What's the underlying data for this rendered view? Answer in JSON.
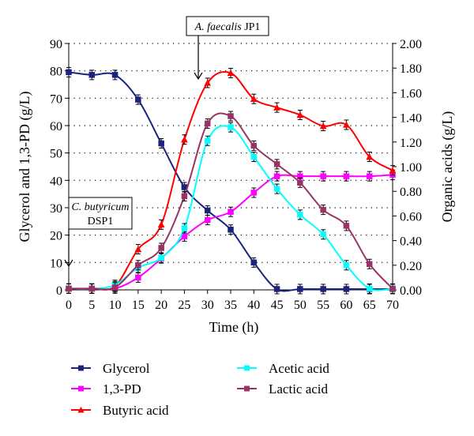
{
  "chart_data": {
    "type": "line",
    "xlabel": "Time (h)",
    "ylabel_left": "Glycerol and 1,3-PD (g/L)",
    "ylabel_right": "Organic acids (g/L)",
    "x": [
      0,
      5,
      10,
      15,
      20,
      25,
      30,
      35,
      40,
      45,
      50,
      55,
      60,
      65,
      70
    ],
    "xlim": [
      0,
      70
    ],
    "ylim_left": [
      0,
      90
    ],
    "ylim_right": [
      0,
      2.0
    ],
    "x_ticks": [
      "0",
      "5",
      "10",
      "15",
      "20",
      "25",
      "30",
      "35",
      "40",
      "45",
      "50",
      "55",
      "60",
      "65",
      "70"
    ],
    "y_left_ticks": [
      "0",
      "10",
      "20",
      "30",
      "40",
      "50",
      "60",
      "70",
      "80",
      "90"
    ],
    "y_right_ticks": [
      "0.00",
      "0.20",
      "0.40",
      "0.60",
      "0.80",
      "1.00",
      "1.20",
      "1.40",
      "1.60",
      "1.80",
      "2.00"
    ],
    "grid": "dotted horizontal",
    "legend_position": "bottom",
    "series": [
      {
        "name": "Glycerol",
        "axis": "left",
        "color": "#1a237e",
        "marker": "square",
        "x": [
          0,
          5,
          10,
          15,
          20,
          25,
          30,
          35,
          40,
          45,
          50,
          55,
          60,
          65,
          70
        ],
        "values": [
          79.5,
          78.5,
          78.5,
          69.5,
          53.5,
          37.5,
          29,
          22,
          10,
          0.3,
          0.3,
          0.3,
          0.3,
          0.3,
          0.3
        ]
      },
      {
        "name": "1,3-PD",
        "axis": "left",
        "color": "#ff00ff",
        "marker": "square",
        "x": [
          0,
          5,
          10,
          15,
          20,
          25,
          30,
          35,
          40,
          45,
          50,
          55,
          60,
          65,
          70
        ],
        "values": [
          0.5,
          0.5,
          0.5,
          4.5,
          11.5,
          19.5,
          25.5,
          28.5,
          35.5,
          41.5,
          41.5,
          41.5,
          41.5,
          41.5,
          42
        ]
      },
      {
        "name": "Butyric acid",
        "axis": "right",
        "color": "#ff0000",
        "marker": "triangle",
        "x": [
          0,
          5,
          10,
          15,
          20,
          25,
          30,
          35,
          40,
          45,
          50,
          55,
          60,
          65,
          70
        ],
        "values": [
          0.01,
          0.01,
          0.03,
          0.33,
          0.53,
          1.22,
          1.68,
          1.76,
          1.55,
          1.48,
          1.42,
          1.33,
          1.34,
          1.08,
          0.97
        ]
      },
      {
        "name": "Acetic acid",
        "axis": "right",
        "color": "#00ffff",
        "marker": "square",
        "x": [
          0,
          5,
          10,
          15,
          20,
          25,
          30,
          35,
          40,
          45,
          50,
          55,
          60,
          65,
          70
        ],
        "values": [
          0.01,
          0.01,
          0.04,
          0.18,
          0.26,
          0.5,
          1.21,
          1.32,
          1.08,
          0.82,
          0.61,
          0.45,
          0.2,
          0.01,
          0.01
        ]
      },
      {
        "name": "Lactic acid",
        "axis": "right",
        "color": "#993366",
        "marker": "square",
        "x": [
          0,
          5,
          10,
          15,
          20,
          25,
          30,
          35,
          40,
          45,
          50,
          55,
          60,
          65,
          70
        ],
        "values": [
          0.01,
          0.01,
          0.02,
          0.2,
          0.34,
          0.76,
          1.35,
          1.41,
          1.17,
          1.02,
          0.87,
          0.65,
          0.52,
          0.21,
          0.01
        ]
      }
    ],
    "annotations": {
      "afaecalis": {
        "italic": "A. faecalis",
        "rest": " JP1",
        "x": 28
      },
      "cbutyricum": {
        "italic": "C. butyricum",
        "rest": "DSP1",
        "x": 0
      }
    }
  }
}
